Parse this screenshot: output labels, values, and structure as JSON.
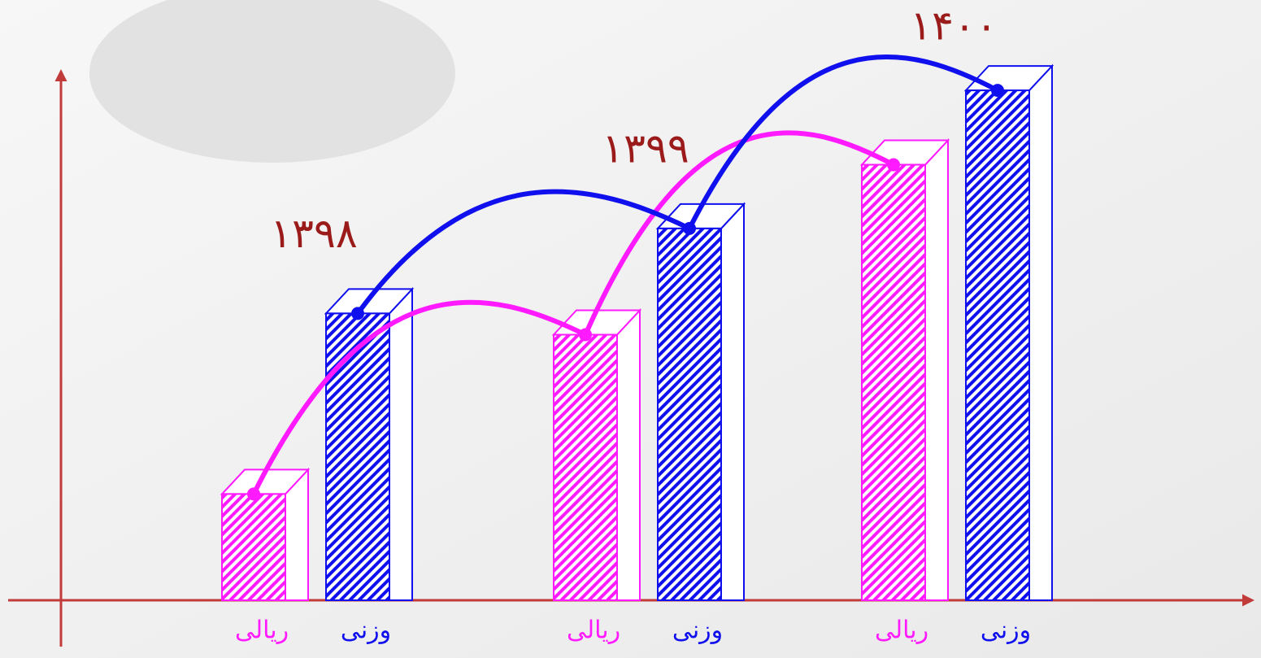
{
  "chart_data": {
    "type": "bar",
    "categories": [
      "۱۳۹۸",
      "۱۳۹۹",
      "۱۴۰۰"
    ],
    "series": [
      {
        "name": "ریالی",
        "color": "#ff1aff",
        "values": [
          20,
          50,
          82
        ]
      },
      {
        "name": "وزنی",
        "color": "#1010ee",
        "values": [
          54,
          70,
          96
        ]
      }
    ],
    "ylim": [
      0,
      100
    ]
  }
}
